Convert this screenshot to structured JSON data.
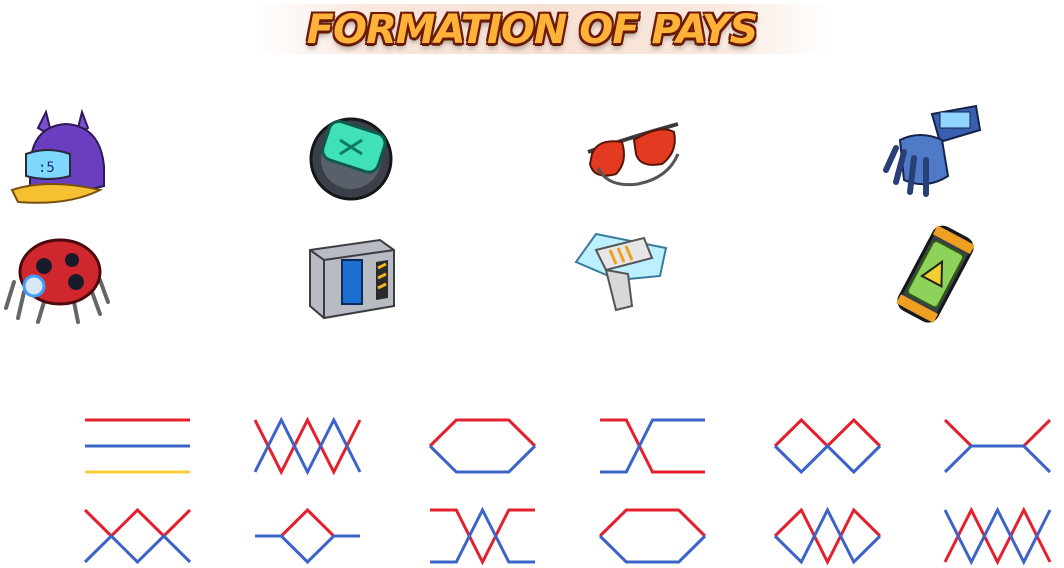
{
  "header": {
    "title": "FORMATION OF PAYS"
  },
  "symbols": [
    {
      "icon": "cap-icon",
      "col": 0,
      "row": 0
    },
    {
      "icon": "watch-icon",
      "col": 1,
      "row": 0
    },
    {
      "icon": "sunglasses-icon",
      "col": 2,
      "row": 0
    },
    {
      "icon": "glove-icon",
      "col": 3,
      "row": 0
    },
    {
      "icon": "robot-bug-icon",
      "col": 0,
      "row": 1
    },
    {
      "icon": "metal-case-icon",
      "col": 1,
      "row": 1
    },
    {
      "icon": "laser-gun-icon",
      "col": 2,
      "row": 1
    },
    {
      "icon": "canister-icon",
      "col": 3,
      "row": 1
    }
  ],
  "paylines": [
    {
      "id": 1,
      "lines": [
        {
          "color": "red",
          "pts": [
            1,
            1,
            1,
            1,
            1
          ]
        },
        {
          "color": "blue",
          "pts": [
            2,
            2,
            2,
            2,
            2
          ]
        },
        {
          "color": "yellow",
          "pts": [
            3,
            3,
            3,
            3,
            3
          ]
        }
      ]
    },
    {
      "id": 2,
      "lines": [
        {
          "color": "red",
          "pts": [
            1,
            3,
            1,
            3,
            1
          ]
        },
        {
          "color": "blue",
          "pts": [
            3,
            1,
            3,
            1,
            3
          ]
        }
      ]
    },
    {
      "id": 3,
      "lines": [
        {
          "color": "red",
          "pts": [
            2,
            1,
            1,
            1,
            2
          ]
        },
        {
          "color": "blue",
          "pts": [
            2,
            3,
            3,
            3,
            2
          ]
        }
      ]
    },
    {
      "id": 4,
      "lines": [
        {
          "color": "red",
          "pts": [
            1,
            1,
            3,
            3,
            3
          ]
        },
        {
          "color": "blue",
          "pts": [
            3,
            3,
            1,
            1,
            1
          ]
        }
      ]
    },
    {
      "id": 5,
      "lines": [
        {
          "color": "red",
          "pts": [
            2,
            1,
            2,
            1,
            2
          ]
        },
        {
          "color": "blue",
          "pts": [
            2,
            3,
            2,
            3,
            2
          ]
        }
      ]
    },
    {
      "id": 6,
      "lines": [
        {
          "color": "red",
          "pts": [
            1,
            2,
            2,
            2,
            1
          ]
        },
        {
          "color": "blue",
          "pts": [
            3,
            2,
            2,
            2,
            3
          ]
        }
      ]
    },
    {
      "id": 7,
      "lines": [
        {
          "color": "red",
          "pts": [
            1,
            2,
            1,
            2,
            1
          ]
        },
        {
          "color": "blue",
          "pts": [
            3,
            2,
            3,
            2,
            3
          ]
        }
      ]
    },
    {
      "id": 8,
      "lines": [
        {
          "color": "red",
          "pts": [
            2,
            2,
            1,
            2,
            2
          ]
        },
        {
          "color": "blue",
          "pts": [
            2,
            2,
            3,
            2,
            2
          ]
        }
      ]
    },
    {
      "id": 9,
      "lines": [
        {
          "color": "red",
          "pts": [
            1,
            1,
            3,
            1,
            1
          ]
        },
        {
          "color": "blue",
          "pts": [
            3,
            3,
            1,
            3,
            3
          ]
        }
      ]
    },
    {
      "id": 10,
      "lines": [
        {
          "color": "red",
          "pts": [
            2,
            1,
            1,
            1,
            2
          ]
        },
        {
          "color": "blue",
          "pts": [
            2,
            3,
            3,
            3,
            2
          ]
        }
      ]
    },
    {
      "id": 11,
      "lines": [
        {
          "color": "red",
          "pts": [
            2,
            1,
            3,
            1,
            2
          ]
        },
        {
          "color": "blue",
          "pts": [
            2,
            3,
            1,
            3,
            2
          ]
        }
      ]
    },
    {
      "id": 12,
      "lines": [
        {
          "color": "red",
          "pts": [
            3,
            1,
            3,
            1,
            3
          ]
        },
        {
          "color": "blue",
          "pts": [
            1,
            3,
            1,
            3,
            1
          ]
        }
      ]
    }
  ],
  "colors": {
    "red": "#e4202e",
    "blue": "#3c64c8",
    "yellow": "#f7cc34"
  }
}
